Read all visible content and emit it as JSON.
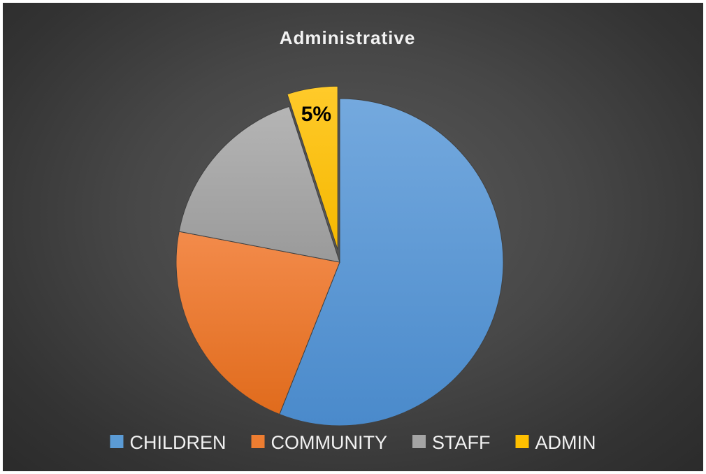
{
  "chart_data": {
    "type": "pie",
    "title": "Administrative",
    "start_angle_deg": 0,
    "direction": "clockwise",
    "exploded_slice": "ADMIN",
    "slices": [
      {
        "label": "CHILDREN",
        "value": 56,
        "color": "#5b9bd5"
      },
      {
        "label": "COMMUNITY",
        "value": 22,
        "color": "#ed7d31"
      },
      {
        "label": "STAFF",
        "value": 17,
        "color": "#a5a5a5"
      },
      {
        "label": "ADMIN",
        "value": 5,
        "color": "#ffc000",
        "data_label": "5%"
      }
    ],
    "legend": {
      "position": "bottom",
      "entries": [
        "CHILDREN",
        "COMMUNITY",
        "STAFF",
        "ADMIN"
      ]
    }
  }
}
